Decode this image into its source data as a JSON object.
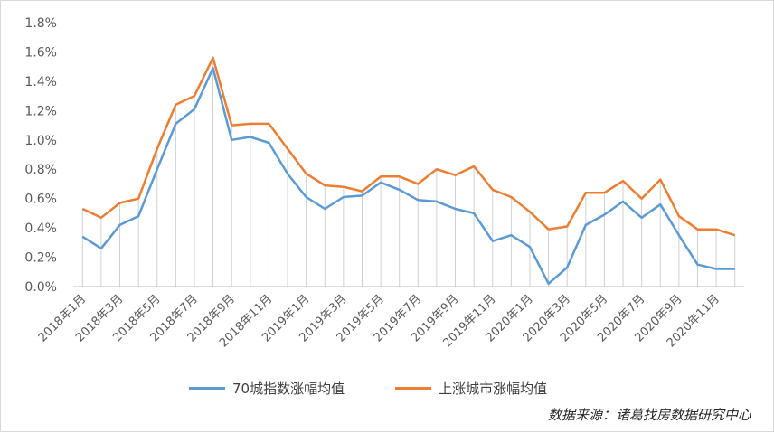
{
  "chart_data": {
    "type": "line",
    "title": "",
    "xlabel": "",
    "ylabel": "",
    "ylim": [
      0,
      1.8
    ],
    "y_ticks": [
      "0.0%",
      "0.2%",
      "0.4%",
      "0.6%",
      "0.8%",
      "1.0%",
      "1.2%",
      "1.4%",
      "1.6%",
      "1.8%"
    ],
    "x_tick_labels": [
      "2018年1月",
      "2018年3月",
      "2018年5月",
      "2018年7月",
      "2018年9月",
      "2018年11月",
      "2019年1月",
      "2019年3月",
      "2019年5月",
      "2019年7月",
      "2019年9月",
      "2019年11月",
      "2020年1月",
      "2020年3月",
      "2020年5月",
      "2020年7月",
      "2020年9月",
      "2020年11月"
    ],
    "categories": [
      "2018年1月",
      "2018年2月",
      "2018年3月",
      "2018年4月",
      "2018年5月",
      "2018年6月",
      "2018年7月",
      "2018年8月",
      "2018年9月",
      "2018年10月",
      "2018年11月",
      "2018年12月",
      "2019年1月",
      "2019年2月",
      "2019年3月",
      "2019年4月",
      "2019年5月",
      "2019年6月",
      "2019年7月",
      "2019年8月",
      "2019年9月",
      "2019年10月",
      "2019年11月",
      "2019年12月",
      "2020年1月",
      "2020年2月",
      "2020年3月",
      "2020年4月",
      "2020年5月",
      "2020年6月",
      "2020年7月",
      "2020年8月",
      "2020年9月",
      "2020年10月",
      "2020年11月",
      "2020年12月"
    ],
    "series": [
      {
        "name": "70城指数涨幅均值",
        "color": "#5b9bd5",
        "values": [
          0.34,
          0.26,
          0.42,
          0.48,
          0.8,
          1.11,
          1.21,
          1.49,
          1.0,
          1.02,
          0.98,
          0.77,
          0.61,
          0.53,
          0.61,
          0.62,
          0.71,
          0.66,
          0.59,
          0.58,
          0.53,
          0.5,
          0.31,
          0.35,
          0.27,
          0.02,
          0.13,
          0.42,
          0.49,
          0.58,
          0.47,
          0.56,
          0.35,
          0.15,
          0.12,
          0.12
        ]
      },
      {
        "name": "上涨城市涨幅均值",
        "color": "#ed7d31",
        "values": [
          0.53,
          0.47,
          0.57,
          0.6,
          0.94,
          1.24,
          1.3,
          1.56,
          1.1,
          1.11,
          1.11,
          0.94,
          0.77,
          0.69,
          0.68,
          0.65,
          0.75,
          0.75,
          0.7,
          0.8,
          0.76,
          0.82,
          0.66,
          0.61,
          0.51,
          0.39,
          0.41,
          0.64,
          0.64,
          0.72,
          0.6,
          0.73,
          0.48,
          0.39,
          0.39,
          0.35
        ]
      }
    ],
    "grid": "vertical"
  },
  "footer": {
    "source": "数据来源：诸葛找房数据研究中心"
  }
}
